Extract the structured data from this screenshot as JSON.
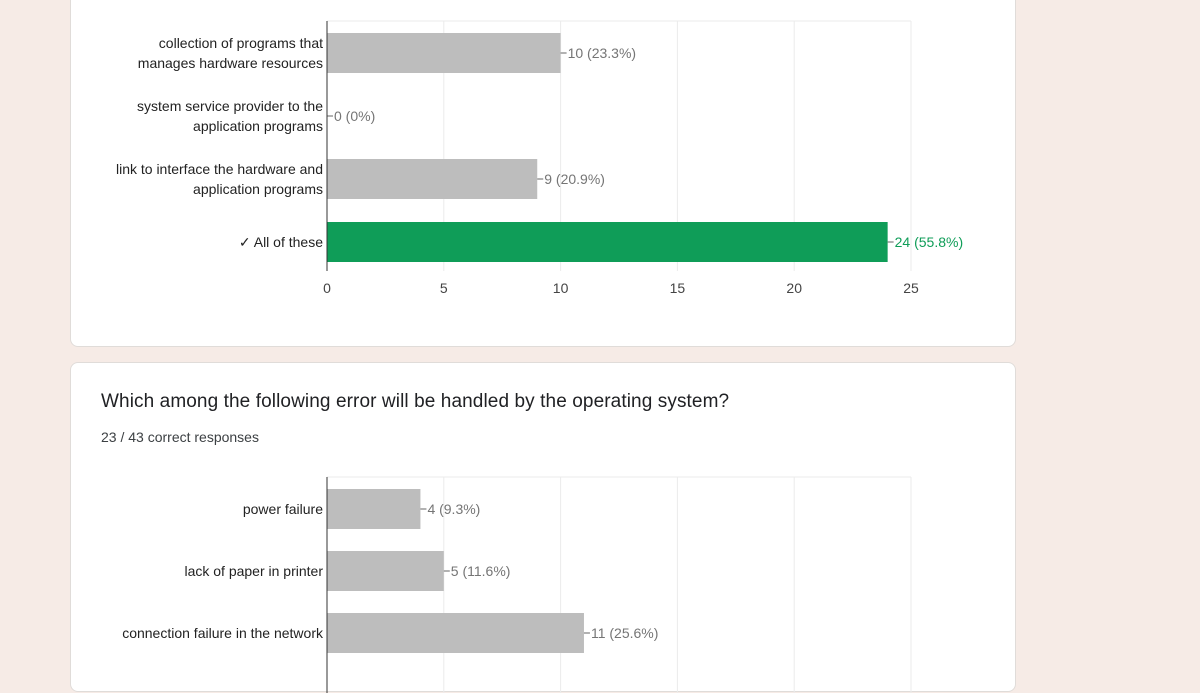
{
  "colors": {
    "background": "#f6ebe6",
    "card": "#ffffff",
    "bar_default": "#bdbdbd",
    "bar_correct": "#0f9d58",
    "grid": "#ebebeb",
    "axis": "#333333",
    "data_label": "#757575"
  },
  "card1": {
    "question": "",
    "summary": ""
  },
  "card2": {
    "question": "Which among the following error will be handled by the operating system?",
    "summary": "23 / 43 correct responses"
  },
  "chart_data": [
    {
      "type": "bar",
      "orientation": "horizontal",
      "categories": [
        [
          "collection of programs that",
          "manages hardware resources"
        ],
        [
          "system service provider to the",
          "application programs"
        ],
        [
          "link to interface the hardware and",
          "application programs"
        ],
        [
          "✓ All of these"
        ]
      ],
      "values": [
        10,
        0,
        9,
        24
      ],
      "data_labels": [
        "10 (23.3%)",
        "0 (0%)",
        "9 (20.9%)",
        "24 (55.8%)"
      ],
      "correct": [
        false,
        false,
        false,
        true
      ],
      "xlim": [
        0,
        25
      ],
      "xticks": [
        "0",
        "5",
        "10",
        "15",
        "20",
        "25"
      ],
      "grid": true
    },
    {
      "type": "bar",
      "orientation": "horizontal",
      "categories": [
        [
          "power failure"
        ],
        [
          "lack of paper in printer"
        ],
        [
          "connection failure in the network"
        ]
      ],
      "values": [
        4,
        5,
        11
      ],
      "data_labels": [
        "4 (9.3%)",
        "5 (11.6%)",
        "11 (25.6%)"
      ],
      "correct": [
        false,
        false,
        false
      ],
      "xlim": [
        0,
        25
      ],
      "xticks": [],
      "grid": true
    }
  ]
}
